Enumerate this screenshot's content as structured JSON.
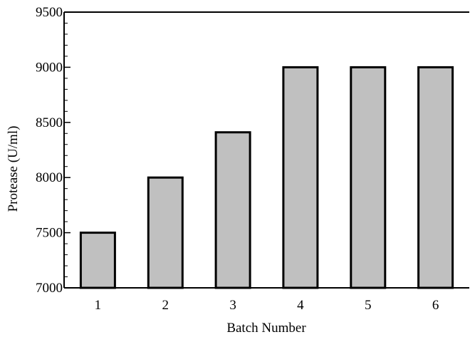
{
  "chart_data": {
    "type": "bar",
    "title": "",
    "xlabel": "Batch Number",
    "ylabel": "Protease (U/ml)",
    "categories": [
      "1",
      "2",
      "3",
      "4",
      "5",
      "6"
    ],
    "values": [
      7500,
      8000,
      8410,
      9000,
      9000,
      9000
    ],
    "ylim": [
      7000,
      9500
    ],
    "yticks": [
      "7000",
      "7500",
      "8000",
      "8500",
      "9000",
      "9500"
    ],
    "grid": false,
    "legend": "none",
    "colors": {
      "bar_fill": "#c0c0c0",
      "bar_stroke": "#000000",
      "axis": "#000000"
    }
  }
}
